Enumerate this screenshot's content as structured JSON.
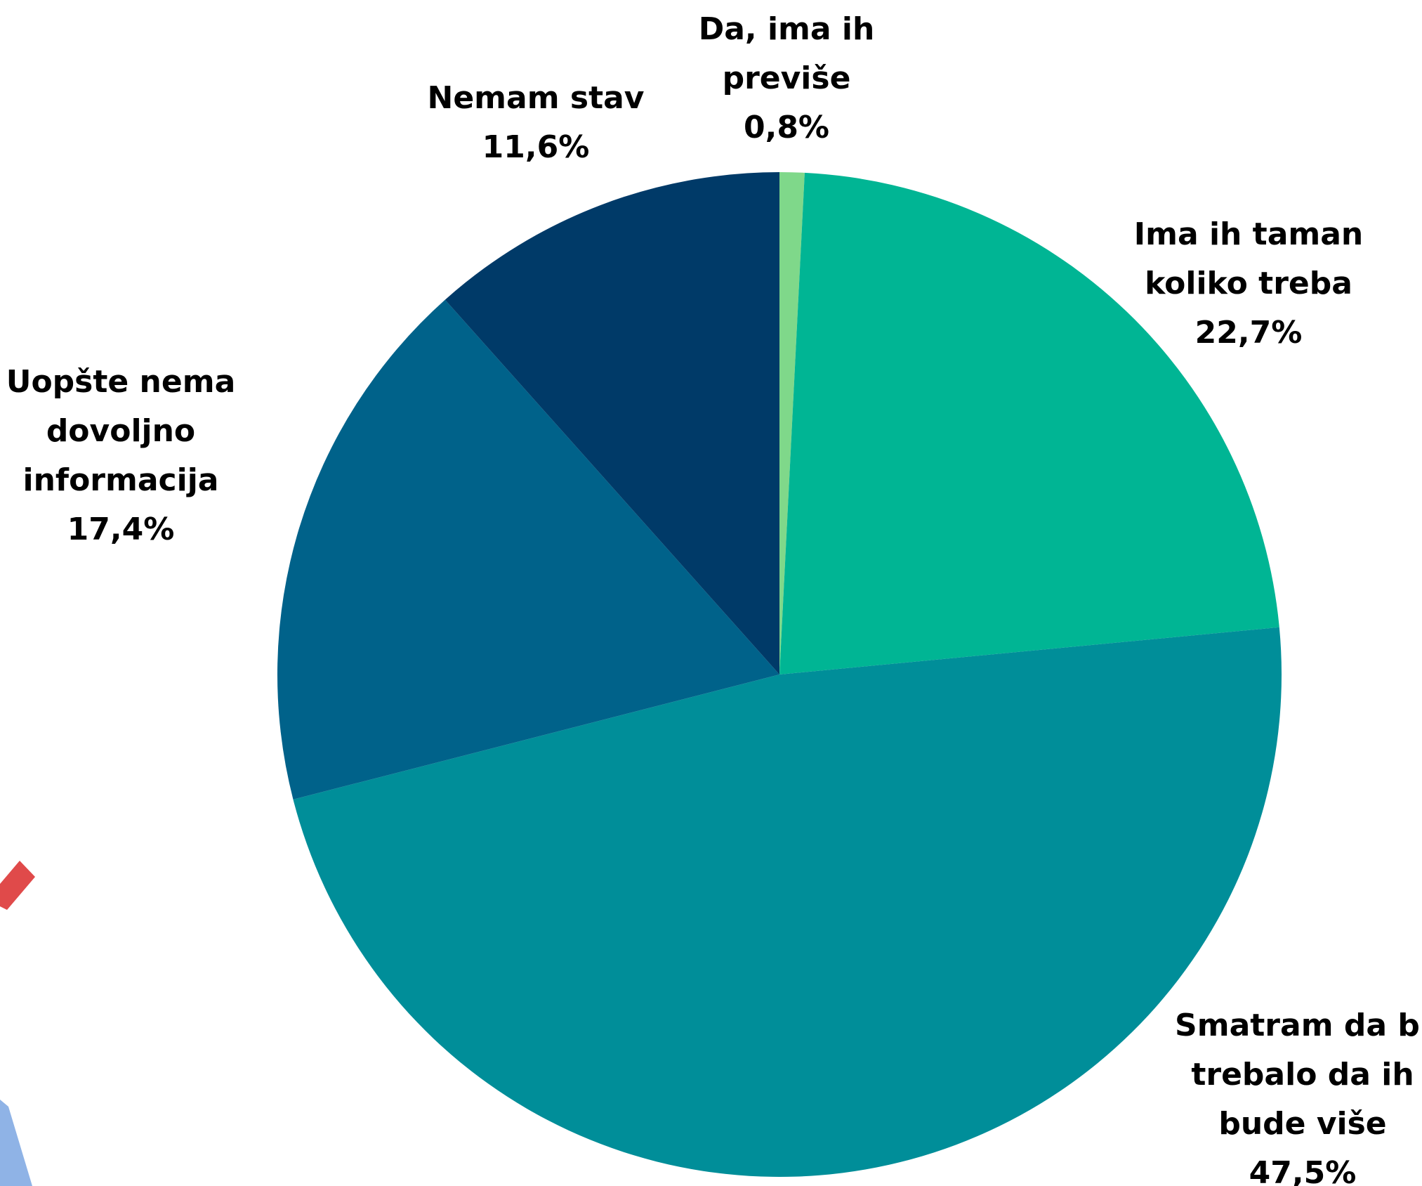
{
  "chart_data": {
    "type": "pie",
    "slices": [
      {
        "label_lines": [
          "Da, ima ih",
          "previše"
        ],
        "value_text": "0,8%",
        "value": 0.8,
        "color": "#7fd88a"
      },
      {
        "label_lines": [
          "Ima ih taman",
          "koliko treba"
        ],
        "value_text": "22,7%",
        "value": 22.7,
        "color": "#00b594"
      },
      {
        "label_lines": [
          "Smatram da bi",
          "trebalo da ih",
          "bude više"
        ],
        "value_text": "47,5%",
        "value": 47.5,
        "color": "#008e99"
      },
      {
        "label_lines": [
          "Uopšte nema",
          "dovoljno",
          "informacija"
        ],
        "value_text": "17,4%",
        "value": 17.4,
        "color": "#00628a"
      },
      {
        "label_lines": [
          "Nemam stav"
        ],
        "value_text": "11,6%",
        "value": 11.6,
        "color": "#003a68"
      }
    ]
  }
}
